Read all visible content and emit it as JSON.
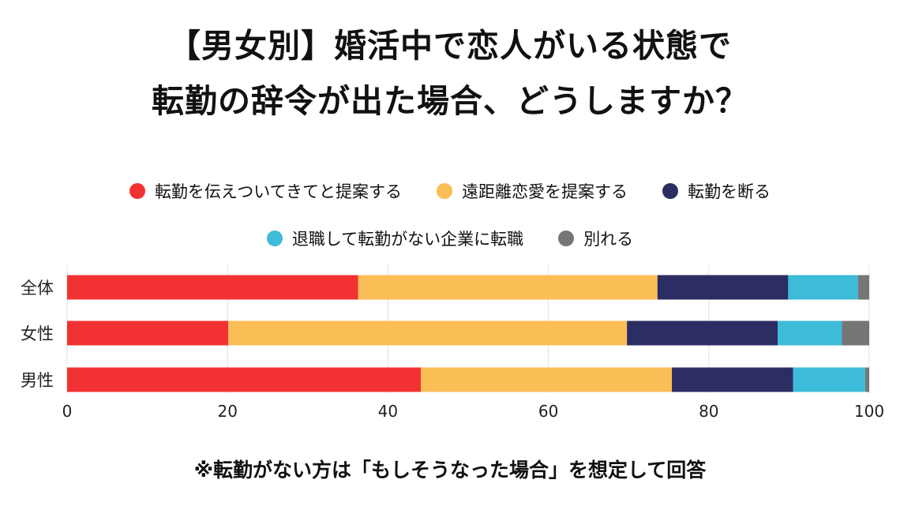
{
  "title": {
    "line1": "【男女別】婚活中で恋人がいる状態で",
    "line2": "転勤の辞令が出た場合、どうしますか？"
  },
  "note": "※転勤がない方は「もしそうなった場合」を想定して回答",
  "chart_data": {
    "type": "bar",
    "orientation": "horizontal",
    "stacked": true,
    "categories": [
      "全体",
      "女性",
      "男性"
    ],
    "series": [
      {
        "name": "転勤を伝えついてきてと提案する",
        "color": "#f23232",
        "values": [
          36.3,
          20.1,
          44.1
        ]
      },
      {
        "name": "遠距離恋愛を提案する",
        "color": "#fbbd56",
        "values": [
          37.3,
          49.7,
          31.3
        ]
      },
      {
        "name": "転勤を断る",
        "color": "#2b2d63",
        "values": [
          16.3,
          18.8,
          15.1
        ]
      },
      {
        "name": "退職して転勤がない企業に転職",
        "color": "#3cbcd8",
        "values": [
          8.7,
          8.0,
          9.0
        ]
      },
      {
        "name": "別れる",
        "color": "#767676",
        "values": [
          1.4,
          3.4,
          0.5
        ]
      }
    ],
    "xlim": [
      0,
      100
    ],
    "xticks": [
      "0",
      "20",
      "40",
      "60",
      "80",
      "100"
    ],
    "grid": true,
    "legend_position": "top"
  }
}
